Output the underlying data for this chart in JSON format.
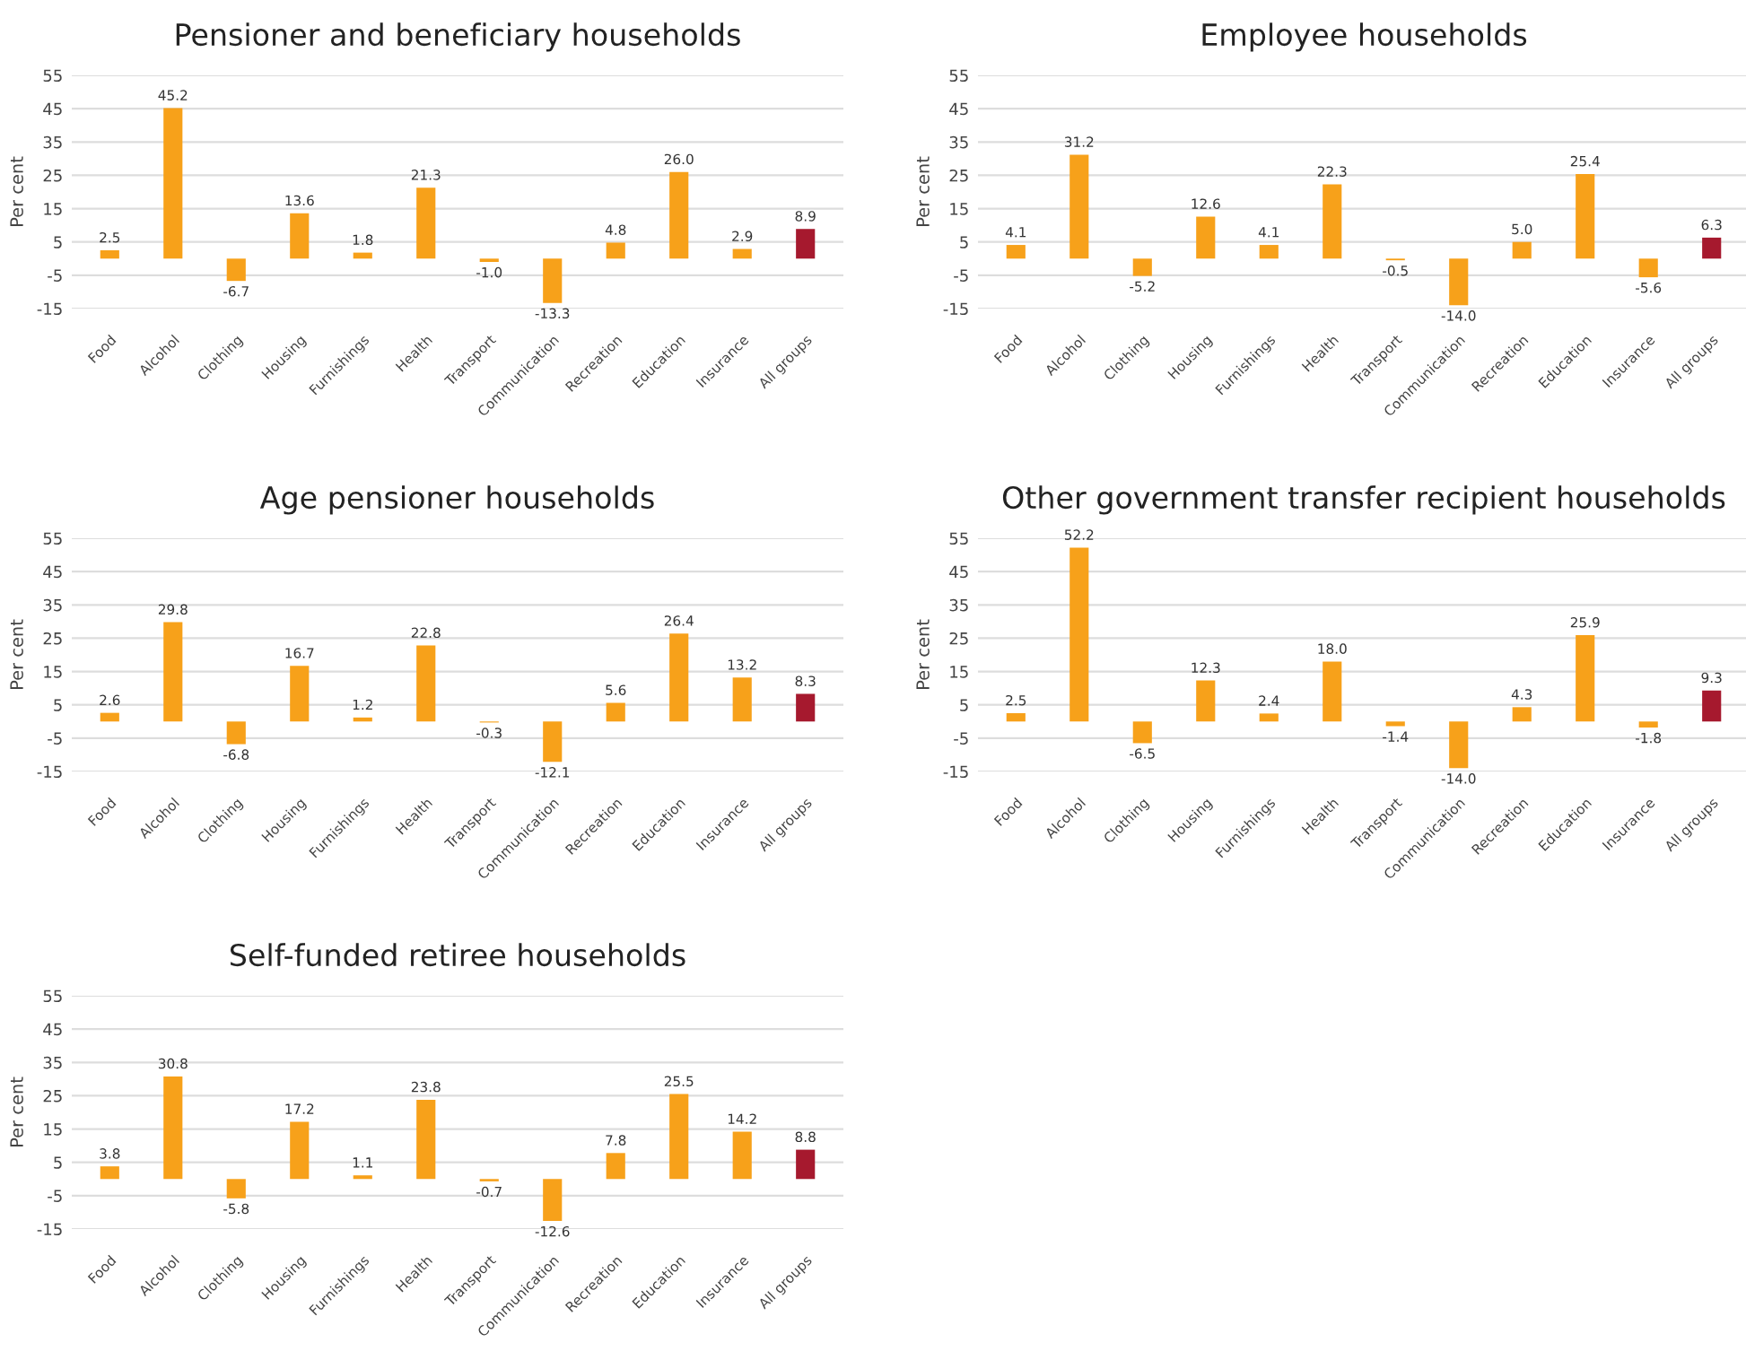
{
  "chart_data": [
    {
      "type": "bar",
      "title": "Pensioner and beneficiary households",
      "ylabel": "Per cent",
      "categories": [
        "Food",
        "Alcohol",
        "Clothing",
        "Housing",
        "Furnishings",
        "Health",
        "Transport",
        "Communication",
        "Recreation",
        "Education",
        "Insurance",
        "All groups"
      ],
      "values": [
        2.5,
        45.2,
        -6.7,
        13.6,
        1.8,
        21.3,
        -1.0,
        -13.3,
        4.8,
        26.0,
        2.9,
        8.9
      ],
      "value_labels": [
        "2.5",
        "45.2",
        "-6.7",
        "13.6",
        "1.8",
        "21.3",
        "-1.0",
        "-13.3",
        "4.8",
        "26.0",
        "2.9",
        "8.9"
      ],
      "colors": [
        "#f7a11a",
        "#f7a11a",
        "#f7a11a",
        "#f7a11a",
        "#f7a11a",
        "#f7a11a",
        "#f7a11a",
        "#f7a11a",
        "#f7a11a",
        "#f7a11a",
        "#f7a11a",
        "#a6192e"
      ],
      "ylim": [
        -15,
        55
      ],
      "yticks": [
        -15,
        -5,
        5,
        15,
        25,
        35,
        45,
        55
      ],
      "grid": "y"
    },
    {
      "type": "bar",
      "title": "Employee households",
      "ylabel": "Per cent",
      "categories": [
        "Food",
        "Alcohol",
        "Clothing",
        "Housing",
        "Furnishings",
        "Health",
        "Transport",
        "Communication",
        "Recreation",
        "Education",
        "Insurance",
        "All groups"
      ],
      "values": [
        4.1,
        31.2,
        -5.2,
        12.6,
        4.1,
        22.3,
        -0.5,
        -14.0,
        5.0,
        25.4,
        -5.6,
        6.3
      ],
      "value_labels": [
        "4.1",
        "31.2",
        "-5.2",
        "12.6",
        "4.1",
        "22.3",
        "-0.5",
        "-14.0",
        "5.0",
        "25.4",
        "-5.6",
        "6.3"
      ],
      "colors": [
        "#f7a11a",
        "#f7a11a",
        "#f7a11a",
        "#f7a11a",
        "#f7a11a",
        "#f7a11a",
        "#f7a11a",
        "#f7a11a",
        "#f7a11a",
        "#f7a11a",
        "#f7a11a",
        "#a6192e"
      ],
      "ylim": [
        -15,
        55
      ],
      "yticks": [
        -15,
        -5,
        5,
        15,
        25,
        35,
        45,
        55
      ],
      "grid": "y"
    },
    {
      "type": "bar",
      "title": "Age pensioner households",
      "ylabel": "Per cent",
      "categories": [
        "Food",
        "Alcohol",
        "Clothing",
        "Housing",
        "Furnishings",
        "Health",
        "Transport",
        "Communication",
        "Recreation",
        "Education",
        "Insurance",
        "All groups"
      ],
      "values": [
        2.6,
        29.8,
        -6.8,
        16.7,
        1.2,
        22.8,
        -0.3,
        -12.1,
        5.6,
        26.4,
        13.2,
        8.3
      ],
      "value_labels": [
        "2.6",
        "29.8",
        "-6.8",
        "16.7",
        "1.2",
        "22.8",
        "-0.3",
        "-12.1",
        "5.6",
        "26.4",
        "13.2",
        "8.3"
      ],
      "colors": [
        "#f7a11a",
        "#f7a11a",
        "#f7a11a",
        "#f7a11a",
        "#f7a11a",
        "#f7a11a",
        "#f7a11a",
        "#f7a11a",
        "#f7a11a",
        "#f7a11a",
        "#f7a11a",
        "#a6192e"
      ],
      "ylim": [
        -15,
        55
      ],
      "yticks": [
        -15,
        -5,
        5,
        15,
        25,
        35,
        45,
        55
      ],
      "grid": "y"
    },
    {
      "type": "bar",
      "title": "Other government transfer recipient households",
      "ylabel": "Per cent",
      "categories": [
        "Food",
        "Alcohol",
        "Clothing",
        "Housing",
        "Furnishings",
        "Health",
        "Transport",
        "Communication",
        "Recreation",
        "Education",
        "Insurance",
        "All groups"
      ],
      "values": [
        2.5,
        52.2,
        -6.5,
        12.3,
        2.4,
        18.0,
        -1.4,
        -14.0,
        4.3,
        25.9,
        -1.8,
        9.3
      ],
      "value_labels": [
        "2.5",
        "52.2",
        "-6.5",
        "12.3",
        "2.4",
        "18.0",
        "-1.4",
        "-14.0",
        "4.3",
        "25.9",
        "-1.8",
        "9.3"
      ],
      "colors": [
        "#f7a11a",
        "#f7a11a",
        "#f7a11a",
        "#f7a11a",
        "#f7a11a",
        "#f7a11a",
        "#f7a11a",
        "#f7a11a",
        "#f7a11a",
        "#f7a11a",
        "#f7a11a",
        "#a6192e"
      ],
      "ylim": [
        -15,
        55
      ],
      "yticks": [
        -15,
        -5,
        5,
        15,
        25,
        35,
        45,
        55
      ],
      "grid": "y"
    },
    {
      "type": "bar",
      "title": "Self-funded retiree households",
      "ylabel": "Per cent",
      "categories": [
        "Food",
        "Alcohol",
        "Clothing",
        "Housing",
        "Furnishings",
        "Health",
        "Transport",
        "Communication",
        "Recreation",
        "Education",
        "Insurance",
        "All groups"
      ],
      "values": [
        3.8,
        30.8,
        -5.8,
        17.2,
        1.1,
        23.8,
        -0.7,
        -12.6,
        7.8,
        25.5,
        14.2,
        8.8
      ],
      "value_labels": [
        "3.8",
        "30.8",
        "-5.8",
        "17.2",
        "1.1",
        "23.8",
        "-0.7",
        "-12.6",
        "7.8",
        "25.5",
        "14.2",
        "8.8"
      ],
      "colors": [
        "#f7a11a",
        "#f7a11a",
        "#f7a11a",
        "#f7a11a",
        "#f7a11a",
        "#f7a11a",
        "#f7a11a",
        "#f7a11a",
        "#f7a11a",
        "#f7a11a",
        "#f7a11a",
        "#a6192e"
      ],
      "ylim": [
        -15,
        55
      ],
      "yticks": [
        -15,
        -5,
        5,
        15,
        25,
        35,
        45,
        55
      ],
      "grid": "y"
    }
  ]
}
